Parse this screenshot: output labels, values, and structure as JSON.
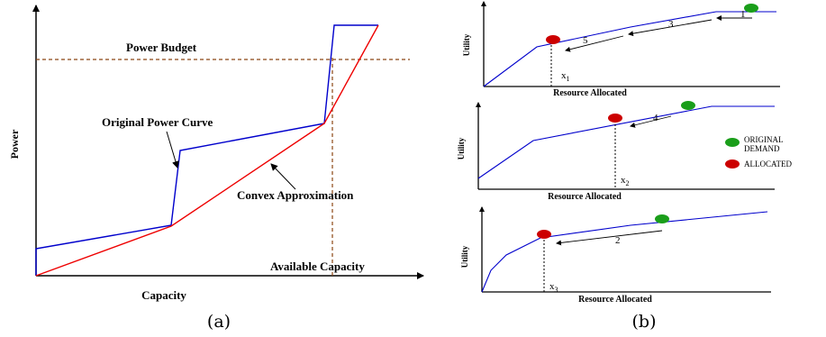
{
  "panel_a": {
    "power_budget": "Power Budget",
    "original_curve": "Original Power Curve",
    "convex_approx": "Convex Approximation",
    "available_capacity": "Available Capacity",
    "y_axis": "Power",
    "x_axis": "Capacity",
    "caption": "(a)"
  },
  "panel_b": {
    "y_axis": "Utility",
    "x_axis": "Resource Allocated",
    "p1": {
      "x_mark": "x",
      "x_sub": "1",
      "steps": [
        "1",
        "3",
        "5"
      ]
    },
    "p2": {
      "x_mark": "x",
      "x_sub": "2",
      "steps": [
        "4"
      ]
    },
    "p3": {
      "x_mark": "x",
      "x_sub": "3",
      "steps": [
        "2"
      ]
    },
    "legend": {
      "original_line1": "ORIGINAL",
      "original_line2": "DEMAND",
      "allocated": "ALLOCATED"
    },
    "caption": "(b)"
  },
  "colors": {
    "original_curve": "#0000cc",
    "convex_curve": "#ee0000",
    "budget_line": "#8b4513",
    "original_demand": "#1a9e1a",
    "allocated": "#cc0000"
  }
}
